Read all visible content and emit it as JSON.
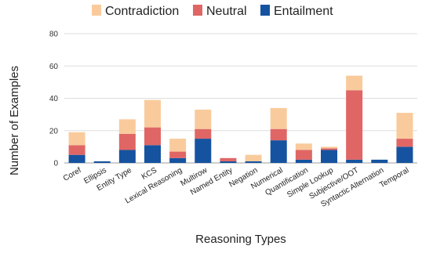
{
  "chart_data": {
    "type": "bar",
    "stacked": true,
    "title": "",
    "xlabel": "Reasoning Types",
    "ylabel": "Number of Examples",
    "ylim": [
      0,
      80
    ],
    "yticks": [
      0,
      20,
      40,
      60,
      80
    ],
    "grid": true,
    "legend_position": "top",
    "categories": [
      "Coref",
      "Ellipsis",
      "Entity Type",
      "KCS",
      "Lexical Reasoning",
      "Multirow",
      "Named Entity",
      "Negation",
      "Numerical",
      "Quantification",
      "Simple Lookup",
      "Subjective/OOT",
      "Syntactic Alternation",
      "Temporal"
    ],
    "series": [
      {
        "name": "Entailment",
        "color": "#1553a0",
        "values": [
          5,
          1,
          8,
          11,
          3,
          15,
          1,
          1,
          14,
          2,
          8,
          2,
          2,
          10
        ]
      },
      {
        "name": "Neutral",
        "color": "#e06666",
        "values": [
          6,
          0,
          10,
          11,
          4,
          6,
          2,
          0,
          7,
          6,
          1,
          43,
          0,
          5
        ]
      },
      {
        "name": "Contradiction",
        "color": "#f9cb9c",
        "values": [
          8,
          0,
          9,
          17,
          8,
          12,
          0,
          4,
          13,
          4,
          1,
          9,
          0,
          16
        ]
      }
    ],
    "legend_order": [
      "Contradiction",
      "Neutral",
      "Entailment"
    ]
  }
}
